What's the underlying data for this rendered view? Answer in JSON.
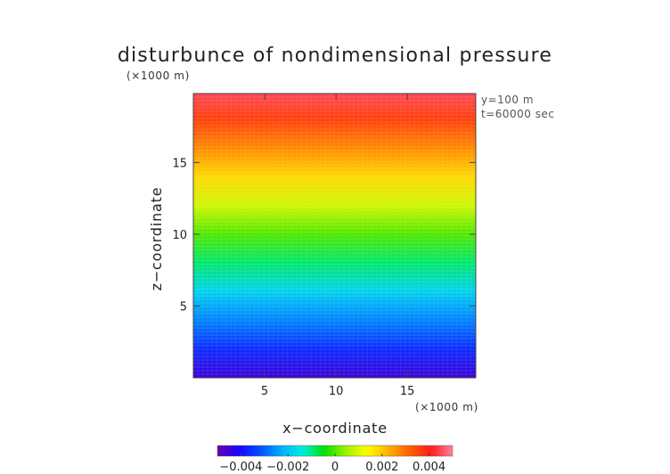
{
  "chart_data": {
    "type": "heatmap",
    "title": "disturbunce of nondimensional pressure",
    "xlabel": "x−coordinate",
    "ylabel": "z−coordinate",
    "x_unit": "(×1000 m)",
    "y_unit": "(×1000 m)",
    "xlim": [
      0,
      19.8
    ],
    "ylim": [
      0,
      19.8
    ],
    "x_ticks": [
      5,
      10,
      15
    ],
    "y_ticks": [
      5,
      10,
      15
    ],
    "x_tick_labels": [
      "5",
      "10",
      "15"
    ],
    "y_tick_labels": [
      "5",
      "10",
      "15"
    ],
    "annotations": [
      "y=100 m",
      "t=60000 sec"
    ],
    "field": {
      "description_z_values": [
        0,
        2,
        4,
        6,
        8,
        10,
        12,
        14,
        16,
        18,
        19.8
      ],
      "values": [
        -0.0045,
        -0.0036,
        -0.0027,
        -0.0018,
        -0.0009,
        0.0,
        0.0009,
        0.0018,
        0.0027,
        0.0036,
        0.0045
      ],
      "varies_along": "z"
    },
    "colorbar": {
      "range": [
        -0.005,
        0.005
      ],
      "ticks": [
        -0.004,
        -0.002,
        0,
        0.002,
        0.004
      ],
      "tick_labels": [
        "−0.004",
        "−0.002",
        "0",
        "0.002",
        "0.004"
      ]
    },
    "colormap": [
      "#6a00a8",
      "#1a00ff",
      "#0050ff",
      "#00b0ff",
      "#00f0e0",
      "#00e000",
      "#a0f000",
      "#ffff00",
      "#ffb000",
      "#ff6000",
      "#ff1a1a",
      "#ff80a0"
    ],
    "grid": false
  }
}
